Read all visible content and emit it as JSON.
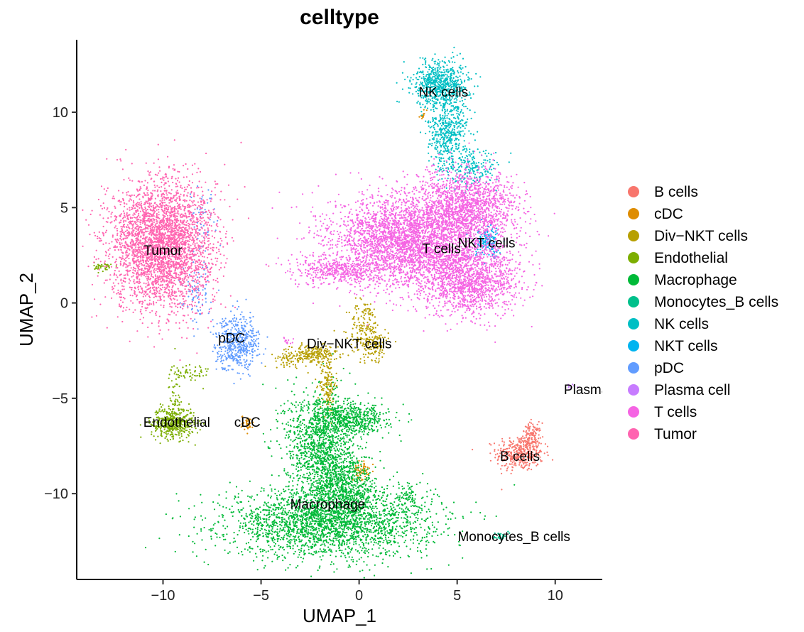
{
  "chart_data": {
    "type": "scatter",
    "title": "celltype",
    "xlabel": "UMAP_1",
    "ylabel": "UMAP_2",
    "xlim": [
      -14.4,
      12.4
    ],
    "ylim": [
      -14.5,
      13.8
    ],
    "x_ticks": [
      -10,
      -5,
      0,
      5,
      10
    ],
    "y_ticks": [
      -10,
      -5,
      0,
      5,
      10
    ],
    "x_tick_labels": [
      "−10",
      "−5",
      "0",
      "5",
      "10"
    ],
    "y_tick_labels": [
      "−10",
      "−5",
      "0",
      "5",
      "10"
    ],
    "grid": false,
    "legend_position": "right",
    "series": [
      {
        "name": "B cells",
        "color": "#F8766D",
        "blobs": [
          {
            "cx": 8.2,
            "cy": -7.9,
            "sx": 0.6,
            "sy": 0.45,
            "n": 380
          },
          {
            "cx": 8.8,
            "cy": -7.0,
            "sx": 0.25,
            "sy": 0.35,
            "n": 120
          }
        ]
      },
      {
        "name": "cDC",
        "color": "#DE8C00",
        "blobs": [
          {
            "cx": -5.7,
            "cy": -6.3,
            "sx": 0.15,
            "sy": 0.2,
            "n": 40
          },
          {
            "cx": 0.1,
            "cy": -8.8,
            "sx": 0.2,
            "sy": 0.25,
            "n": 60
          },
          {
            "cx": 3.3,
            "cy": 9.9,
            "sx": 0.1,
            "sy": 0.15,
            "n": 12
          }
        ]
      },
      {
        "name": "Div−NKT cells",
        "color": "#B79F00",
        "blobs": [
          {
            "cx": -2.3,
            "cy": -2.7,
            "sx": 0.6,
            "sy": 0.25,
            "n": 220
          },
          {
            "cx": -1.6,
            "cy": -4.2,
            "sx": 0.2,
            "sy": 0.8,
            "n": 150
          },
          {
            "cx": 0.3,
            "cy": -1.4,
            "sx": 0.4,
            "sy": 0.8,
            "n": 180
          },
          {
            "cx": 0.9,
            "cy": -2.2,
            "sx": 0.3,
            "sy": 0.4,
            "n": 90
          },
          {
            "cx": -3.5,
            "cy": -2.9,
            "sx": 0.4,
            "sy": 0.2,
            "n": 60
          }
        ]
      },
      {
        "name": "Endothelial",
        "color": "#7CAE00",
        "blobs": [
          {
            "cx": -9.5,
            "cy": -6.3,
            "sx": 0.55,
            "sy": 0.4,
            "n": 450
          },
          {
            "cx": -9.4,
            "cy": -4.7,
            "sx": 0.15,
            "sy": 0.8,
            "n": 60
          },
          {
            "cx": -8.6,
            "cy": -3.7,
            "sx": 0.5,
            "sy": 0.3,
            "n": 50
          },
          {
            "cx": -13.0,
            "cy": 1.9,
            "sx": 0.25,
            "sy": 0.12,
            "n": 40
          }
        ]
      },
      {
        "name": "Macrophage",
        "color": "#00BA38",
        "blobs": [
          {
            "cx": -1.5,
            "cy": -11.5,
            "sx": 2.6,
            "sy": 0.9,
            "n": 2600
          },
          {
            "cx": -2.0,
            "cy": -7.3,
            "sx": 0.9,
            "sy": 1.4,
            "n": 1200
          },
          {
            "cx": -0.8,
            "cy": -9.5,
            "sx": 0.8,
            "sy": 0.8,
            "n": 600
          },
          {
            "cx": -0.3,
            "cy": -6.1,
            "sx": 0.9,
            "sy": 0.4,
            "n": 500
          },
          {
            "cx": 2.5,
            "cy": -10.2,
            "sx": 0.3,
            "sy": 0.4,
            "n": 70
          }
        ]
      },
      {
        "name": "Monocytes_B cells",
        "color": "#00C08B",
        "blobs": [
          {
            "cx": 7.2,
            "cy": -12.2,
            "sx": 0.15,
            "sy": 0.12,
            "n": 25
          }
        ]
      },
      {
        "name": "NK cells",
        "color": "#00BFC4",
        "blobs": [
          {
            "cx": 4.2,
            "cy": 11.5,
            "sx": 0.7,
            "sy": 0.6,
            "n": 700
          },
          {
            "cx": 4.5,
            "cy": 8.9,
            "sx": 0.5,
            "sy": 1.0,
            "n": 500
          },
          {
            "cx": 5.8,
            "cy": 7.0,
            "sx": 0.6,
            "sy": 0.5,
            "n": 180
          }
        ]
      },
      {
        "name": "NKT cells",
        "color": "#00B4F0",
        "blobs": [
          {
            "cx": 6.6,
            "cy": 3.2,
            "sx": 0.35,
            "sy": 0.4,
            "n": 160
          }
        ]
      },
      {
        "name": "pDC",
        "color": "#619CFF",
        "blobs": [
          {
            "cx": -6.2,
            "cy": -2.1,
            "sx": 0.55,
            "sy": 0.7,
            "n": 520
          },
          {
            "cx": -8.3,
            "cy": 0.5,
            "sx": 0.4,
            "sy": 0.8,
            "n": 80
          },
          {
            "cx": -8.0,
            "cy": 3.8,
            "sx": 0.4,
            "sy": 1.0,
            "n": 60
          }
        ]
      },
      {
        "name": "Plasma cell",
        "color": "#C77CFF",
        "blobs": [
          {
            "cx": 10.8,
            "cy": -4.4,
            "sx": 0.15,
            "sy": 0.08,
            "n": 10
          }
        ]
      },
      {
        "name": "T cells",
        "color": "#F564E3",
        "blobs": [
          {
            "cx": 2.5,
            "cy": 3.3,
            "sx": 1.9,
            "sy": 1.2,
            "n": 3200
          },
          {
            "cx": 5.6,
            "cy": 5.0,
            "sx": 1.3,
            "sy": 1.0,
            "n": 1500
          },
          {
            "cx": 5.6,
            "cy": 1.2,
            "sx": 1.3,
            "sy": 0.9,
            "n": 1400
          },
          {
            "cx": -0.8,
            "cy": 1.7,
            "sx": 1.3,
            "sy": 0.35,
            "n": 450
          },
          {
            "cx": -3.7,
            "cy": -2.0,
            "sx": 0.15,
            "sy": 0.1,
            "n": 12
          }
        ]
      },
      {
        "name": "Tumor",
        "color": "#FF64B0",
        "blobs": [
          {
            "cx": -10.1,
            "cy": 3.0,
            "sx": 1.3,
            "sy": 1.7,
            "n": 3400
          }
        ]
      }
    ],
    "cluster_labels": [
      {
        "text": "NK cells",
        "x": 4.3,
        "y": 11.0
      },
      {
        "text": "Tumor",
        "x": -10.0,
        "y": 2.7
      },
      {
        "text": "T cells",
        "x": 4.2,
        "y": 2.8
      },
      {
        "text": "NKT cells",
        "x": 6.5,
        "y": 3.1
      },
      {
        "text": "pDC",
        "x": -6.5,
        "y": -1.9
      },
      {
        "text": "Div−NKT cells",
        "x": -0.5,
        "y": -2.2
      },
      {
        "text": "Plasma cell",
        "x": 12.2,
        "y": -4.6
      },
      {
        "text": "Endothelial",
        "x": -9.3,
        "y": -6.3
      },
      {
        "text": "cDC",
        "x": -5.7,
        "y": -6.3
      },
      {
        "text": "B cells",
        "x": 8.2,
        "y": -8.1
      },
      {
        "text": "Macrophage",
        "x": -1.6,
        "y": -10.6
      },
      {
        "text": "Monocytes_B cells",
        "x": 7.9,
        "y": -12.3
      }
    ]
  }
}
